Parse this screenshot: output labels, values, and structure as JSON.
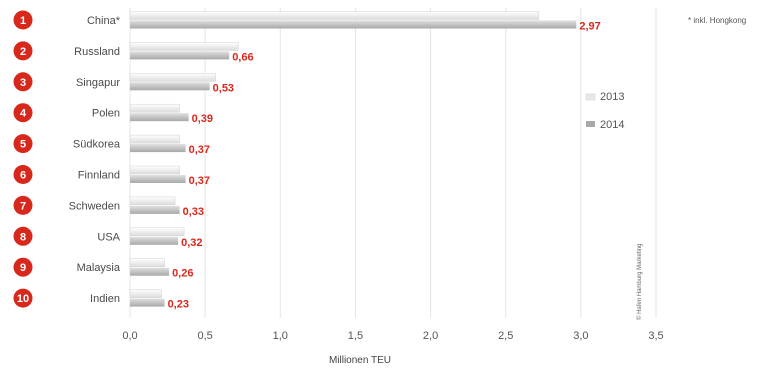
{
  "chart_data": {
    "type": "bar",
    "orientation": "horizontal",
    "categories": [
      "China*",
      "Russland",
      "Singapur",
      "Polen",
      "Südkorea",
      "Finnland",
      "Schweden",
      "USA",
      "Malaysia",
      "Indien"
    ],
    "ranks": [
      "1",
      "2",
      "3",
      "4",
      "5",
      "6",
      "7",
      "8",
      "9",
      "10"
    ],
    "series": [
      {
        "name": "2013",
        "values": [
          2.72,
          0.72,
          0.57,
          0.33,
          0.33,
          0.33,
          0.3,
          0.36,
          0.23,
          0.21
        ],
        "color": "#e6e6e6"
      },
      {
        "name": "2014",
        "values": [
          2.97,
          0.66,
          0.53,
          0.39,
          0.37,
          0.37,
          0.33,
          0.32,
          0.26,
          0.23
        ],
        "color": "#bdbdbd"
      }
    ],
    "value_labels": [
      "2,97",
      "0,66",
      "0,53",
      "0,39",
      "0,37",
      "0,37",
      "0,33",
      "0,32",
      "0,26",
      "0,23"
    ],
    "xlabel": "Millionen TEU",
    "xlim": [
      0,
      3.5
    ],
    "xticks": [
      "0,0",
      "0,5",
      "1,0",
      "1,5",
      "2,0",
      "2,5",
      "3,0",
      "3,5"
    ],
    "footnote": "* inkl. Hongkong",
    "credit": "© Hafen Hamburg Marketing",
    "grid": true,
    "legend_position": "right",
    "accent_color": "#d8281c"
  }
}
